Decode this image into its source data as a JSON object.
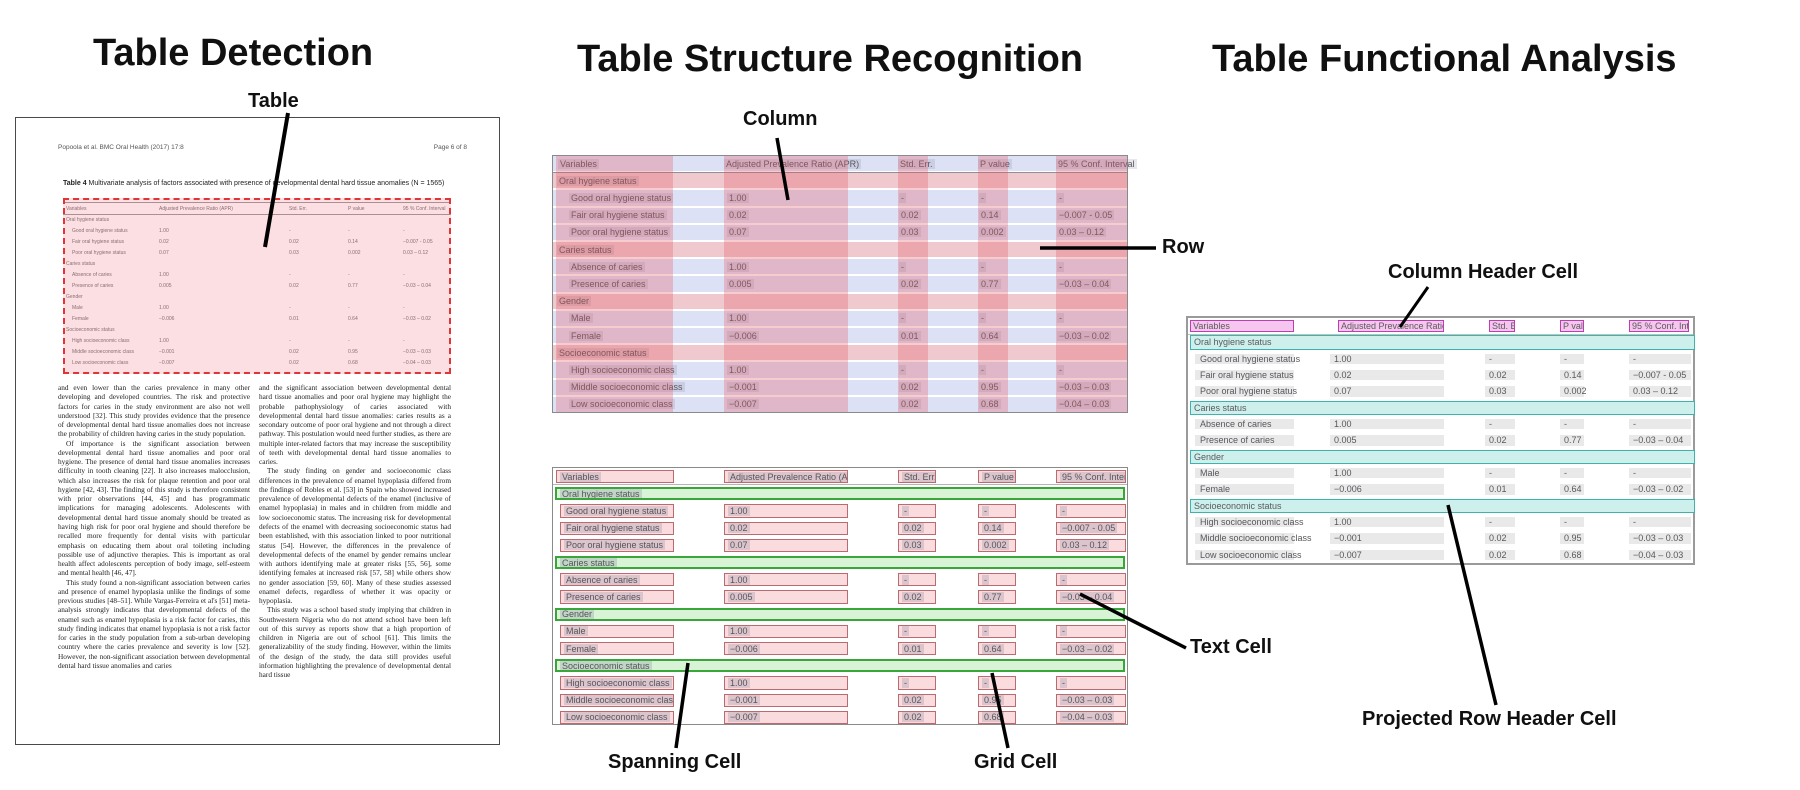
{
  "panels": {
    "detection": {
      "title": "Table Detection",
      "callout": "Table",
      "document": {
        "header_left": "Popoola et al. BMC Oral Health  (2017) 17:8",
        "header_right": "Page 6 of 8",
        "paragraphs_left": [
          "and even lower than the caries prevalence in many other developing and developed countries. The risk and protective factors for caries in the study environment are also not well understood [32]. This study provides evidence that the presence of developmental dental hard tissue anomalies does not increase the probability of children having caries in the study population.",
          "Of importance is the significant association between developmental dental hard tissue anomalies and poor oral hygiene. The presence of dental hard tissue anomalies increases difficulty in tooth cleaning [22]. It also increases malocclusion, which also increases the risk for plaque retention and poor oral hygiene [42, 43]. The finding of this study is therefore consistent with prior observations [44, 45] and has programmatic implications for managing adolescents. Adolescents with developmental dental hard tissue anomaly should be treated as having high risk for poor oral hygiene and should therefore be recalled more frequently for dental visits with particular emphasis on educating them about oral toileting including possible use of adjunctive therapies. This is important as oral health affect adolescents perception of body image, self-esteem and mental health [46, 47].",
          "This study found a non-significant association between caries and presence of enamel hypoplasia unlike the findings of some previous studies [48–51]. While Vargas-Ferreira et al's [51] meta-analysis strongly indicates that developmental defects of the enamel such as enamel hypoplasia is a risk factor for caries, this study finding indicates that enamel hypoplasia is not a risk factor for caries in the study population from a sub-urban developing country where the caries prevalence and severity is low [52]. However, the non-significant association between developmental dental hard tissue anomalies and caries"
        ],
        "paragraphs_right": [
          "and the significant association between developmental dental hard tissue anomalies and poor oral hygiene may highlight the probable pathophysiology of caries associated with developmental dental hard tissue anomalies: caries results as a secondary outcome of poor oral hygiene and not through a direct pathway. This postulation would need further studies, as there are multiple inter-related factors that may increase the susceptibility of teeth with developmental dental hard tissue anomalies to caries.",
          "The study finding on gender and socioeconomic class differences in the prevalence of enamel hypoplasia differed from the findings of Robles et al. [53] in Spain who showed increased prevalence of developmental defects of the enamel (inclusive of enamel hypoplasia) in males and in children from middle and low socioeconomic status. The increasing risk for developmental defects of the enamel with decreasing socioeconomic status had been established, with this association linked to poor nutritional status [54]. However, the differences in the prevalence of developmental defects of the enamel by gender remains unclear with authors identifying male at greater risks [55, 56], some identifying females at increased risk [57, 58] while others show no gender association [59, 60]. Many of these studies assessed enamel defects, regardless of whether it was opacity or hypoplasia.",
          "This study was a school based study implying that children in Southwestern Nigeria who do not attend school have been left out of this survey as reports show that a high proportion of children in Nigeria are out of school [61]. This limits the generalizability of the study finding. However, within the limits of the design of the study, the data still provides useful information highlighting the prevalence of developmental dental hard tissue"
        ]
      }
    },
    "structure": {
      "title": "Table Structure Recognition",
      "callouts": {
        "column": "Column",
        "row": "Row",
        "spanning_cell": "Spanning Cell",
        "grid_cell": "Grid Cell",
        "text_cell": "Text Cell"
      }
    },
    "functional": {
      "title": "Table Functional Analysis",
      "callouts": {
        "column_header_cell": "Column Header Cell",
        "projected_row_header_cell": "Projected Row Header Cell"
      }
    }
  },
  "table": {
    "caption_label": "Table 4",
    "caption_text": " Multivariate analysis of factors associated with presence of developmental dental hard tissue anomalies (N = 1565)",
    "headers": [
      "Variables",
      "Adjusted Prevalence Ratio (APR)",
      "Std. Err.",
      "P value",
      "95 % Conf. Interval"
    ],
    "rows": [
      {
        "type": "section",
        "label": "Oral hygiene status"
      },
      {
        "type": "data",
        "label": "Good oral hygiene status",
        "values": [
          "1.00",
          "-",
          "-",
          "-"
        ]
      },
      {
        "type": "data",
        "label": "Fair oral hygiene status",
        "values": [
          "0.02",
          "0.02",
          "0.14",
          "−0.007 - 0.05"
        ]
      },
      {
        "type": "data",
        "label": "Poor oral hygiene status",
        "values": [
          "0.07",
          "0.03",
          "0.002",
          "0.03 – 0.12"
        ]
      },
      {
        "type": "section",
        "label": "Caries status"
      },
      {
        "type": "data",
        "label": "Absence of caries",
        "values": [
          "1.00",
          "-",
          "-",
          "-"
        ]
      },
      {
        "type": "data",
        "label": "Presence of caries",
        "values": [
          "0.005",
          "0.02",
          "0.77",
          "−0.03 – 0.04"
        ]
      },
      {
        "type": "section",
        "label": "Gender"
      },
      {
        "type": "data",
        "label": "Male",
        "values": [
          "1.00",
          "-",
          "-",
          "-"
        ]
      },
      {
        "type": "data",
        "label": "Female",
        "values": [
          "−0.006",
          "0.01",
          "0.64",
          "−0.03 – 0.02"
        ]
      },
      {
        "type": "section",
        "label": "Socioeconomic status"
      },
      {
        "type": "data",
        "label": "High socioeconomic class",
        "values": [
          "1.00",
          "-",
          "-",
          "-"
        ]
      },
      {
        "type": "data",
        "label": "Middle socioeconomic class",
        "values": [
          "−0.001",
          "0.02",
          "0.95",
          "−0.03 – 0.03"
        ]
      },
      {
        "type": "data",
        "label": "Low socioeconomic class",
        "values": [
          "−0.007",
          "0.02",
          "0.68",
          "−0.04 – 0.03"
        ]
      }
    ]
  },
  "colors": {
    "detection_overlay": "#F2CFD3",
    "detection_border": "#E03535",
    "row_overlay": "#DDE1F6",
    "section_row_overlay": "#F0C9CE",
    "column_overlay": "#E65661",
    "grid_cell_fill": "#FBDCDE",
    "grid_cell_border": "#BB6A6F",
    "spanning_fill": "#D9F3D7",
    "spanning_border": "#3AA63A",
    "header_cell_fill": "#F6C6EE",
    "header_cell_border": "#BB3EB2",
    "projected_fill": "#CDF0EC",
    "projected_border": "#3FB3AB",
    "text_highlight": "#E9E9E9"
  }
}
